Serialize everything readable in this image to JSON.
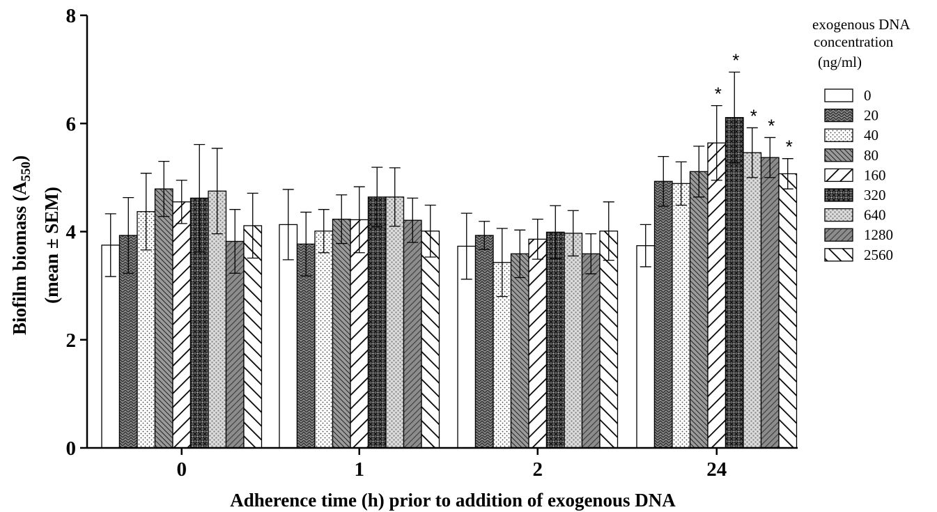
{
  "chart_data": {
    "type": "bar",
    "categories": [
      "0",
      "1",
      "2",
      "24"
    ],
    "xlabel": "Adherence time (h) prior to addition of exogenous DNA",
    "ylabel": {
      "line1_pre": "Biofilm biomass (A",
      "line1_sub": "550",
      "line1_post": ")",
      "line2": "(mean ± SEM)"
    },
    "ylim": [
      0,
      8
    ],
    "yticks": [
      "0",
      "2",
      "4",
      "6",
      "8"
    ],
    "legend": {
      "title": [
        "exogenous DNA",
        "concentration",
        "(ng/ml)"
      ],
      "placement": "right"
    },
    "series": [
      {
        "name": "0",
        "pattern": "white",
        "values": [
          3.75,
          4.13,
          3.73,
          3.74
        ],
        "errors": [
          0.58,
          0.65,
          0.61,
          0.39
        ],
        "significant": [
          false,
          false,
          false,
          false
        ]
      },
      {
        "name": "20",
        "pattern": "herringbone",
        "values": [
          3.93,
          3.77,
          3.93,
          4.93
        ],
        "errors": [
          0.7,
          0.59,
          0.26,
          0.46
        ],
        "significant": [
          false,
          false,
          false,
          false
        ]
      },
      {
        "name": "40",
        "pattern": "dots",
        "values": [
          4.37,
          4.01,
          3.43,
          4.89
        ],
        "errors": [
          0.71,
          0.4,
          0.63,
          0.4
        ],
        "significant": [
          false,
          false,
          false,
          false
        ]
      },
      {
        "name": "80",
        "pattern": "fine-diag",
        "values": [
          4.79,
          4.23,
          3.59,
          5.11
        ],
        "errors": [
          0.51,
          0.45,
          0.44,
          0.47
        ],
        "significant": [
          false,
          false,
          false,
          false
        ]
      },
      {
        "name": "160",
        "pattern": "wide-diag",
        "values": [
          4.55,
          4.22,
          3.86,
          5.64
        ],
        "errors": [
          0.4,
          0.61,
          0.37,
          0.69
        ],
        "significant": [
          false,
          false,
          false,
          true
        ]
      },
      {
        "name": "320",
        "pattern": "crosshatch",
        "values": [
          4.62,
          4.64,
          3.99,
          6.11
        ],
        "errors": [
          0.99,
          0.55,
          0.49,
          0.84
        ],
        "significant": [
          false,
          false,
          false,
          true
        ]
      },
      {
        "name": "640",
        "pattern": "speckle",
        "values": [
          4.75,
          4.64,
          3.97,
          5.46
        ],
        "errors": [
          0.79,
          0.54,
          0.42,
          0.46
        ],
        "significant": [
          false,
          false,
          false,
          true
        ]
      },
      {
        "name": "1280",
        "pattern": "dense-diag",
        "values": [
          3.82,
          4.21,
          3.59,
          5.37
        ],
        "errors": [
          0.59,
          0.41,
          0.37,
          0.37
        ],
        "significant": [
          false,
          false,
          false,
          true
        ]
      },
      {
        "name": "2560",
        "pattern": "back-diag",
        "values": [
          4.11,
          4.01,
          4.01,
          5.07
        ],
        "errors": [
          0.6,
          0.48,
          0.54,
          0.28
        ],
        "significant": [
          false,
          false,
          false,
          true
        ]
      }
    ],
    "significance_marker": "*",
    "grid": false
  }
}
